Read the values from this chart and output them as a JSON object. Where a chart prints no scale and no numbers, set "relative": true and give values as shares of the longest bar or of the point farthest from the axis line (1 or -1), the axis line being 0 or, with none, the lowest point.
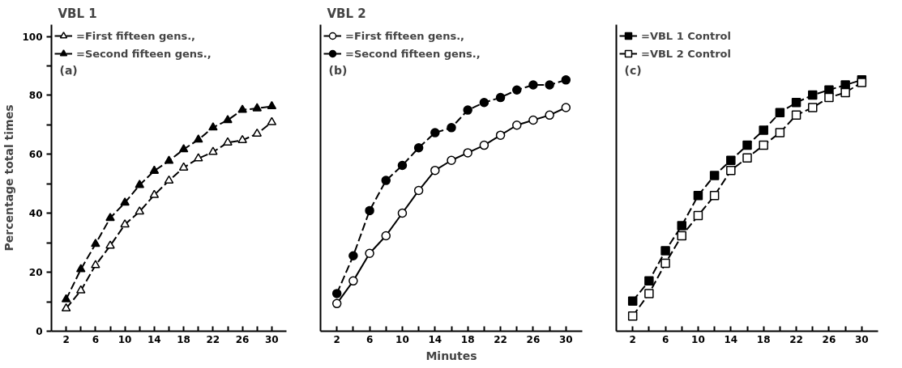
{
  "chart_data": [
    {
      "type": "line",
      "title": "VBL 1",
      "ylabel": "Percentage total times",
      "annotations": [
        "(a)"
      ],
      "legend": "top left",
      "grid": false,
      "x": [
        2,
        4,
        6,
        8,
        10,
        12,
        14,
        16,
        18,
        20,
        22,
        24,
        26,
        28,
        30
      ],
      "xlim": [
        0,
        32
      ],
      "ylim": [
        0,
        104
      ],
      "xticks": [
        2,
        {
          "value": 4,
          "label": null
        },
        6,
        {
          "value": 8,
          "label": null
        },
        10,
        {
          "value": 12,
          "label": null
        },
        14,
        {
          "value": 16,
          "label": null
        },
        18,
        {
          "value": 20,
          "label": null
        },
        22,
        {
          "value": 24,
          "label": null
        },
        26,
        {
          "value": 28,
          "label": null
        },
        30
      ],
      "yticks": [
        0,
        {
          "value": 10,
          "label": null
        },
        20,
        {
          "value": 30,
          "label": null
        },
        40,
        {
          "value": 50,
          "label": null
        },
        60,
        {
          "value": 70,
          "label": null
        },
        80,
        {
          "value": 90,
          "label": null
        },
        100
      ],
      "series": [
        {
          "name": "=First fifteen gens.,",
          "color": "#ffffff",
          "marker": "triangle",
          "line_style": "dashed",
          "values": [
            7.7,
            13.8,
            22.4,
            29,
            36.2,
            40.6,
            46.2,
            51.1,
            55.5,
            58.6,
            60.8,
            64,
            64.8,
            67,
            70.9
          ]
        },
        {
          "name": "=Second fifteen gens.,",
          "color": "#000000",
          "marker": "triangle",
          "line_style": "dashed",
          "values": [
            10.8,
            21,
            29.6,
            38.4,
            43.6,
            49.6,
            54.4,
            57.8,
            61.7,
            65,
            69.1,
            71.6,
            75.1,
            75.6,
            76.3
          ]
        }
      ]
    },
    {
      "type": "line",
      "title": "VBL 2",
      "xlabel": "Minutes",
      "annotations": [
        "(b)"
      ],
      "legend": "top left",
      "grid": false,
      "relative": true,
      "x": [
        2,
        4,
        6,
        8,
        10,
        12,
        14,
        16,
        18,
        20,
        22,
        24,
        26,
        28,
        30
      ],
      "xlim": [
        0,
        32
      ],
      "xticks": [
        2,
        {
          "value": 4,
          "label": null
        },
        6,
        {
          "value": 8,
          "label": null
        },
        10,
        {
          "value": 12,
          "label": null
        },
        14,
        {
          "value": 16,
          "label": null
        },
        18,
        {
          "value": 20,
          "label": null
        },
        22,
        {
          "value": 24,
          "label": null
        },
        26,
        {
          "value": 28,
          "label": null
        },
        30
      ],
      "series": [
        {
          "name": "=First fifteen gens.,",
          "color": "#ffffff",
          "marker": "circle",
          "line_style": "solid",
          "values": [
            0.11,
            0.2,
            0.31,
            0.38,
            0.47,
            0.56,
            0.64,
            0.68,
            0.71,
            0.74,
            0.78,
            0.82,
            0.84,
            0.86,
            0.89
          ]
        },
        {
          "name": "=Second fifteen gens.,",
          "color": "#000000",
          "marker": "circle",
          "line_style": "dashed",
          "values": [
            0.15,
            0.3,
            0.48,
            0.6,
            0.66,
            0.73,
            0.79,
            0.81,
            0.88,
            0.91,
            0.93,
            0.96,
            0.98,
            0.98,
            1
          ]
        }
      ]
    },
    {
      "type": "line",
      "annotations": [
        "(c)"
      ],
      "legend": "top left",
      "grid": false,
      "relative": true,
      "x": [
        2,
        4,
        6,
        8,
        10,
        12,
        14,
        16,
        18,
        20,
        22,
        24,
        26,
        28,
        30
      ],
      "xlim": [
        0,
        32
      ],
      "xticks": [
        2,
        {
          "value": 4,
          "label": null
        },
        6,
        {
          "value": 8,
          "label": null
        },
        10,
        {
          "value": 12,
          "label": null
        },
        14,
        {
          "value": 16,
          "label": null
        },
        18,
        {
          "value": 20,
          "label": null
        },
        22,
        {
          "value": 24,
          "label": null
        },
        26,
        {
          "value": 28,
          "label": null
        },
        30
      ],
      "series": [
        {
          "name": "=VBL 1 Control",
          "color": "#000000",
          "marker": "square",
          "line_style": "dashed",
          "values": [
            0.12,
            0.2,
            0.32,
            0.42,
            0.54,
            0.62,
            0.68,
            0.74,
            0.8,
            0.87,
            0.91,
            0.94,
            0.96,
            0.98,
            1
          ]
        },
        {
          "name": "=VBL 2 Control",
          "color": "#ffffff",
          "marker": "square",
          "line_style": "dashed",
          "values": [
            0.06,
            0.15,
            0.27,
            0.38,
            0.46,
            0.54,
            0.64,
            0.69,
            0.74,
            0.79,
            0.86,
            0.89,
            0.93,
            0.95,
            0.99
          ]
        }
      ]
    }
  ]
}
